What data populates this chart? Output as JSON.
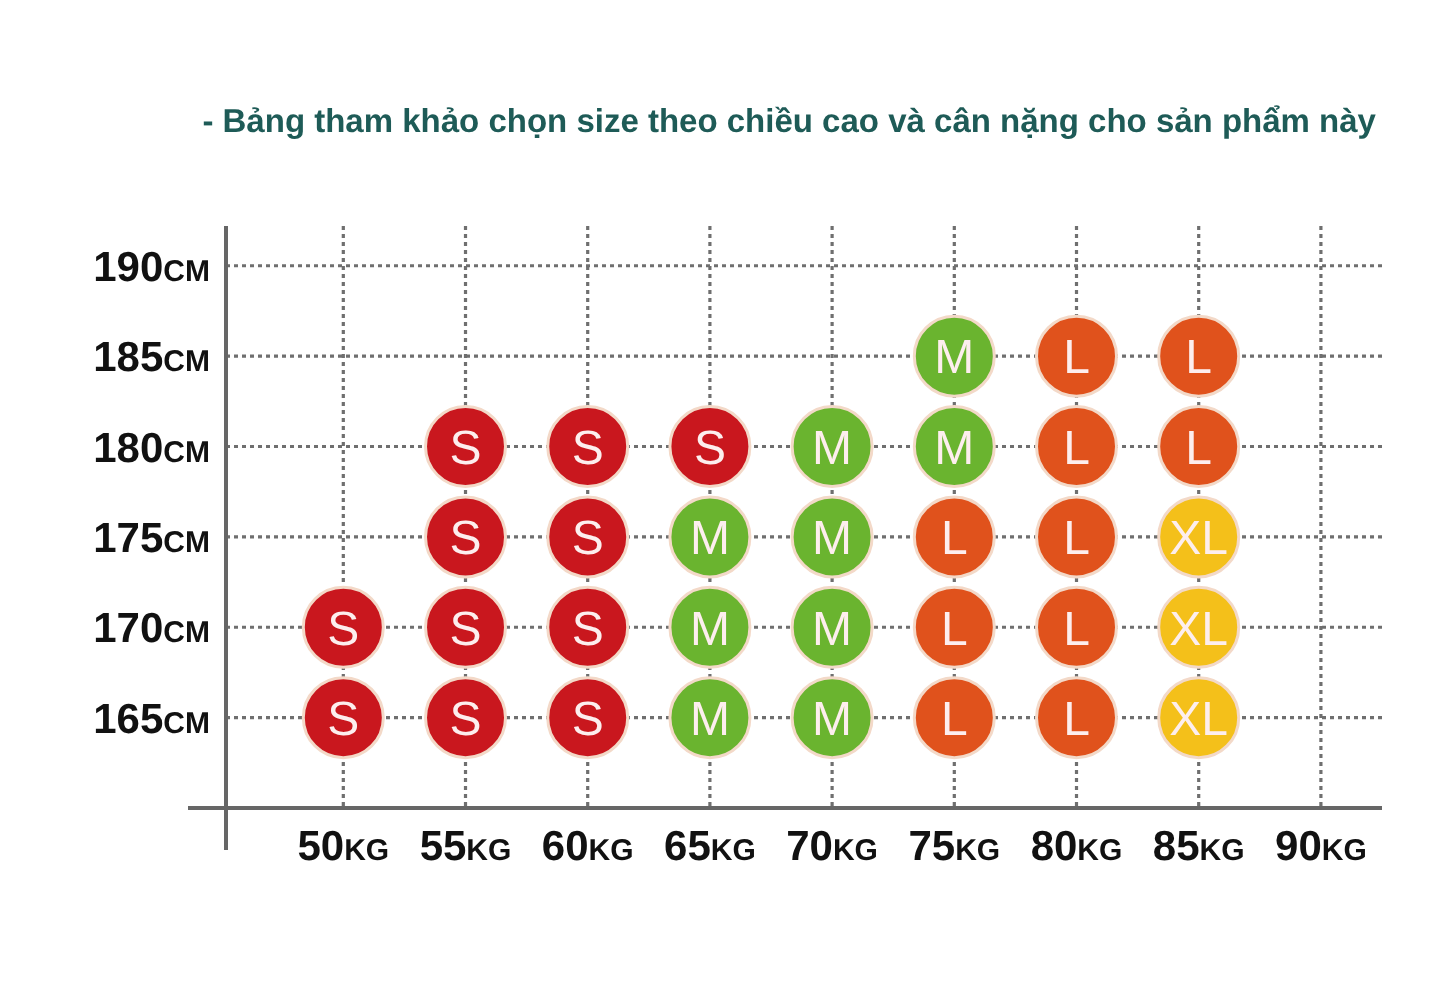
{
  "chart_data": {
    "type": "scatter",
    "title": "- Bảng tham khảo chọn size theo chiều cao và cân nặng cho sản phẩm này",
    "xlim": [
      45.2,
      92.5
    ],
    "ylim": [
      160,
      192.2
    ],
    "xticks": [
      {
        "value": 50,
        "label": "50kg"
      },
      {
        "value": 55,
        "label": "55kg"
      },
      {
        "value": 60,
        "label": "60kg"
      },
      {
        "value": 65,
        "label": "65kg"
      },
      {
        "value": 70,
        "label": "70kg"
      },
      {
        "value": 75,
        "label": "75kg"
      },
      {
        "value": 80,
        "label": "80kg"
      },
      {
        "value": 85,
        "label": "85kg"
      },
      {
        "value": 90,
        "label": "90kg"
      }
    ],
    "yticks": [
      {
        "value": 165,
        "label": "165cm"
      },
      {
        "value": 170,
        "label": "170cm"
      },
      {
        "value": 175,
        "label": "175cm"
      },
      {
        "value": 180,
        "label": "180cm"
      },
      {
        "value": 185,
        "label": "185cm"
      },
      {
        "value": 190,
        "label": "190cm"
      }
    ],
    "grid": true,
    "marker": "circle",
    "series": [
      {
        "name": "S",
        "color": "#c9171e",
        "x": [
          55,
          60,
          65,
          55,
          60,
          50,
          55,
          60,
          50,
          55,
          60
        ],
        "values": [
          180,
          180,
          180,
          175,
          175,
          170,
          170,
          170,
          165,
          165,
          165
        ]
      },
      {
        "name": "M",
        "color": "#6ab42f",
        "x": [
          75,
          70,
          75,
          65,
          70,
          65,
          70,
          65,
          70
        ],
        "values": [
          185,
          180,
          180,
          175,
          175,
          170,
          170,
          165,
          165
        ]
      },
      {
        "name": "L",
        "color": "#e0521c",
        "x": [
          80,
          85,
          80,
          85,
          75,
          80,
          75,
          80,
          75,
          80
        ],
        "values": [
          185,
          185,
          180,
          180,
          175,
          175,
          170,
          170,
          165,
          165
        ]
      },
      {
        "name": "XL",
        "color": "#f4c01a",
        "x": [
          85,
          85,
          85
        ],
        "values": [
          175,
          170,
          165
        ]
      }
    ]
  }
}
